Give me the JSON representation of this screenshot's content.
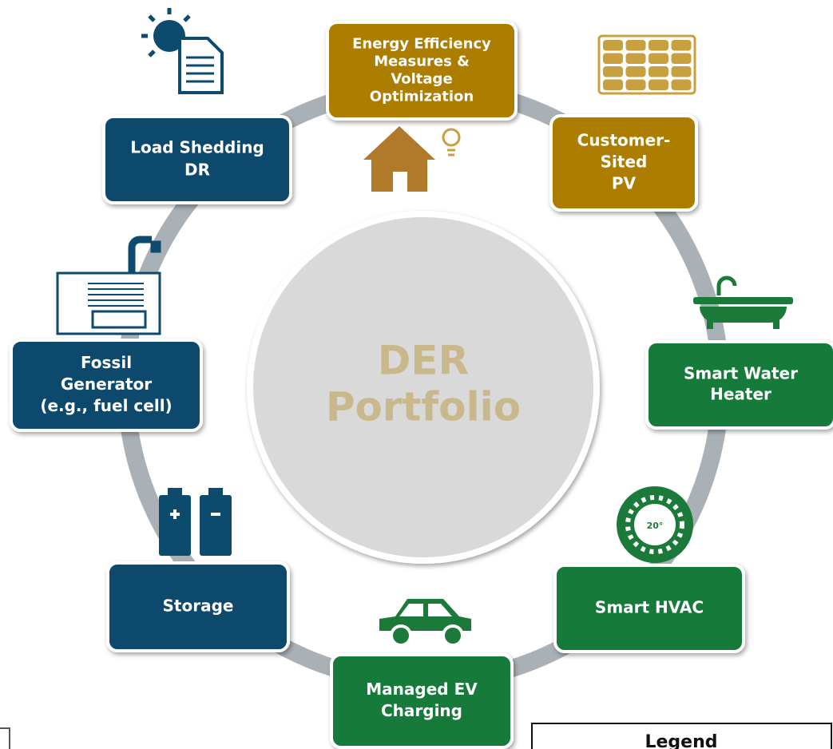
{
  "center": {
    "lines": [
      "DER",
      "Portfolio"
    ]
  },
  "nodes": [
    {
      "lines": [
        "Energy Efficiency",
        "Measures &",
        "Voltage",
        "Optimization"
      ]
    },
    {
      "lines": [
        "Customer-",
        "Sited",
        "PV"
      ]
    },
    {
      "lines": [
        "Smart Water",
        "Heater"
      ]
    },
    {
      "lines": [
        "Smart HVAC"
      ]
    },
    {
      "lines": [
        "Managed EV",
        "Charging"
      ]
    },
    {
      "lines": [
        "Storage"
      ]
    },
    {
      "lines": [
        "Fossil",
        "Generator",
        "(e.g., fuel cell)"
      ]
    },
    {
      "lines": [
        "Load Shedding",
        "DR"
      ]
    }
  ],
  "thermostat": {
    "label": "20°"
  },
  "legend": {
    "title": "Legend"
  }
}
